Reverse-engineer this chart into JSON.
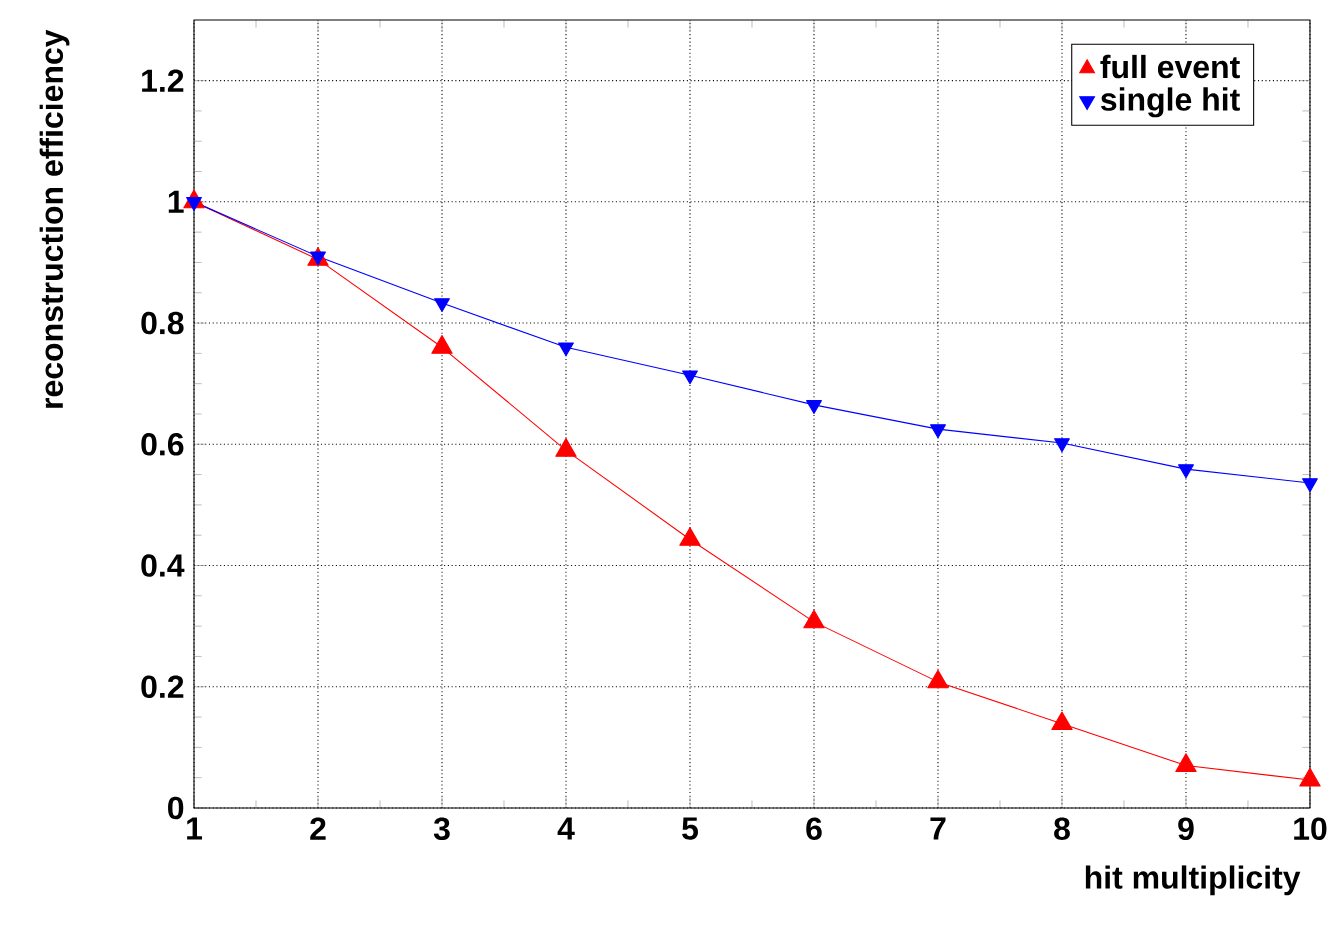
{
  "chart_data": {
    "type": "line",
    "xlabel": "hit multiplicity",
    "ylabel": "reconstruction efficiency",
    "x": [
      1,
      2,
      3,
      4,
      5,
      6,
      7,
      8,
      9,
      10
    ],
    "series": [
      {
        "name": "full event",
        "color": "#ff0000",
        "marker": "triangle",
        "values": [
          1.0,
          0.905,
          0.76,
          0.59,
          0.443,
          0.307,
          0.208,
          0.139,
          0.07,
          0.046
        ]
      },
      {
        "name": "single hit",
        "color": "#0000ff",
        "marker": "triangle down",
        "values": [
          1.0,
          0.91,
          0.833,
          0.76,
          0.714,
          0.665,
          0.625,
          0.602,
          0.559,
          0.536
        ]
      }
    ],
    "xlim": [
      1,
      10
    ],
    "xticks": [
      1,
      2,
      3,
      4,
      5,
      6,
      7,
      8,
      9,
      10
    ],
    "ylim": [
      0,
      1.3
    ],
    "yticks": [
      0,
      0.2,
      0.4,
      0.6,
      0.8,
      1,
      1.2
    ],
    "grid": true,
    "legend": "top right",
    "line_style": "solid"
  }
}
